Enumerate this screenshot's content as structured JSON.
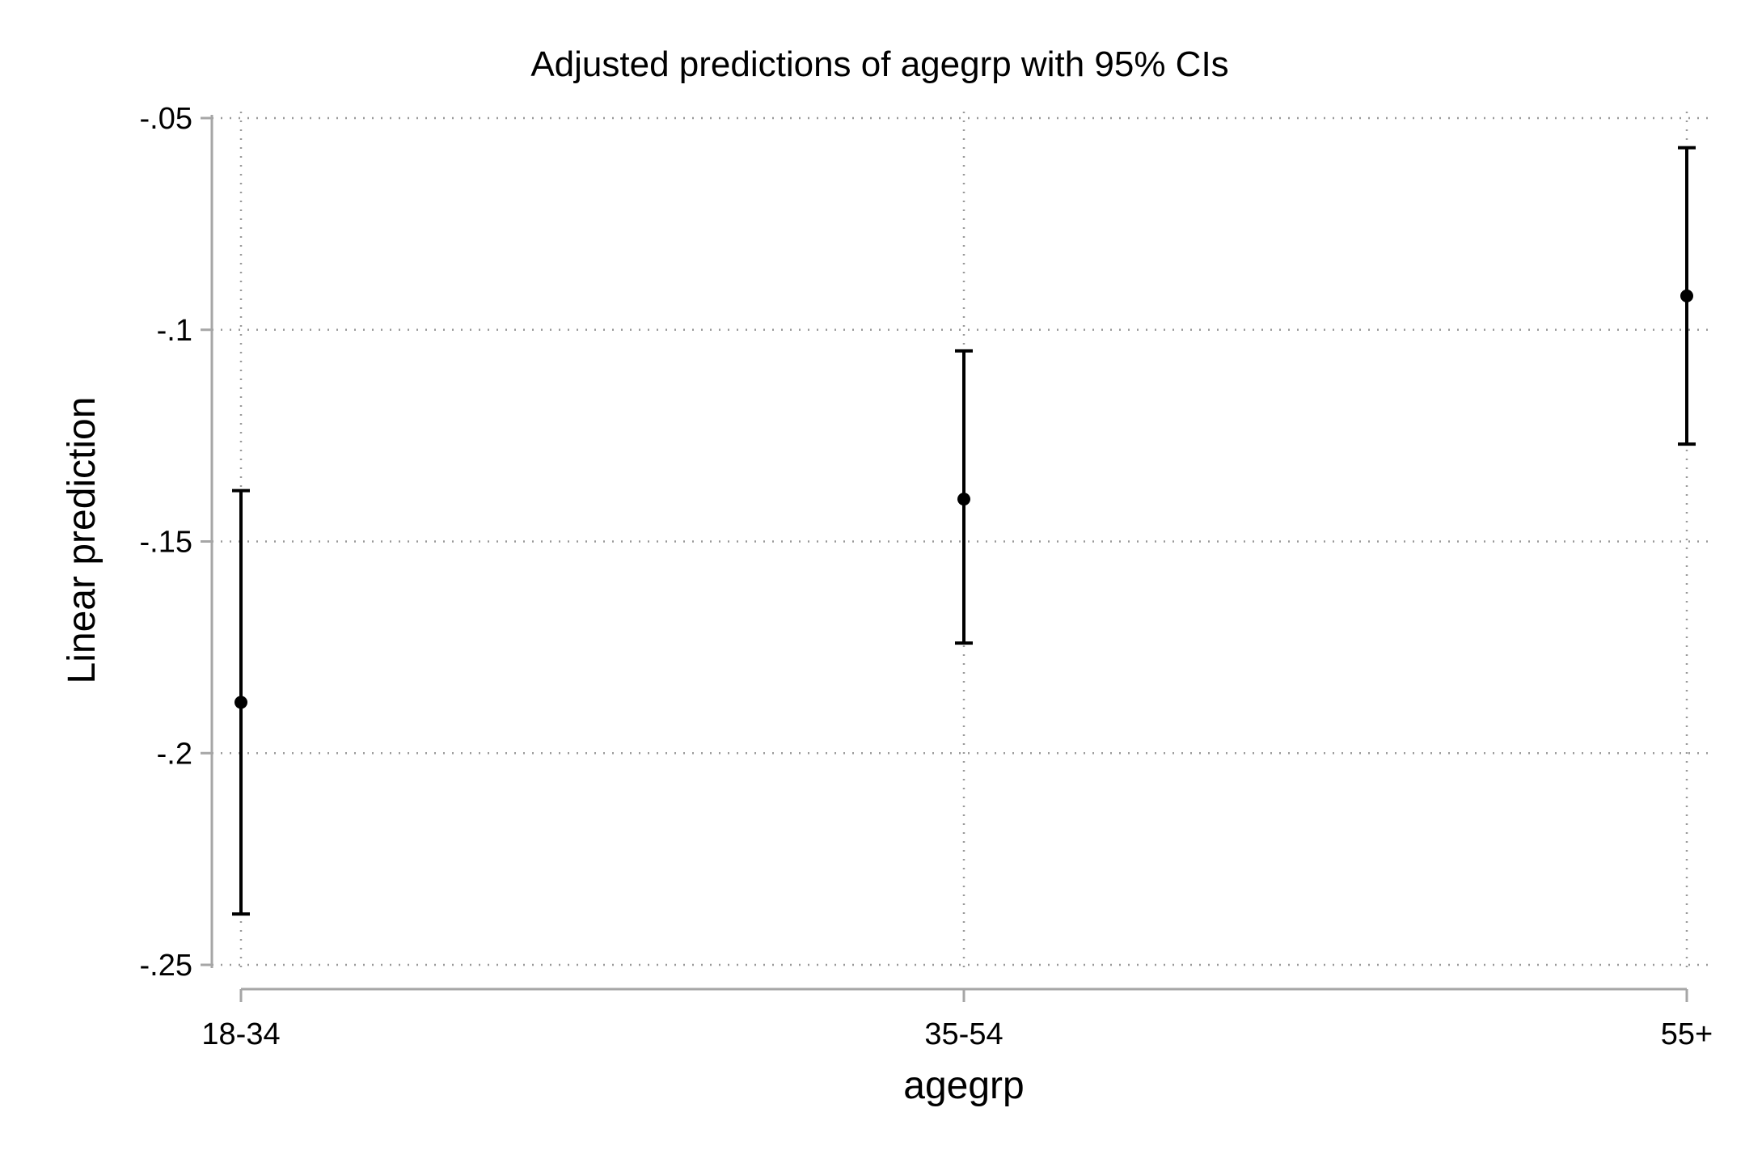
{
  "chart_data": {
    "type": "scatter",
    "title": "Adjusted predictions of agegrp with 95% CIs",
    "xlabel": "agegrp",
    "ylabel": "Linear prediction",
    "categories": [
      "18-34",
      "35-54",
      "55+"
    ],
    "series": [
      {
        "values": [
          -0.188,
          -0.14,
          -0.092
        ],
        "ci_lower": [
          -0.238,
          -0.174,
          -0.127
        ],
        "ci_upper": [
          -0.138,
          -0.105,
          -0.057
        ]
      }
    ],
    "yticks": [
      -0.05,
      -0.1,
      -0.15,
      -0.2,
      -0.25
    ],
    "ytick_labels": [
      "-.05",
      "-.1",
      "-.15",
      "-.2",
      "-.25"
    ],
    "ylim": [
      -0.25,
      -0.05
    ],
    "grid": true,
    "legend": "none"
  }
}
